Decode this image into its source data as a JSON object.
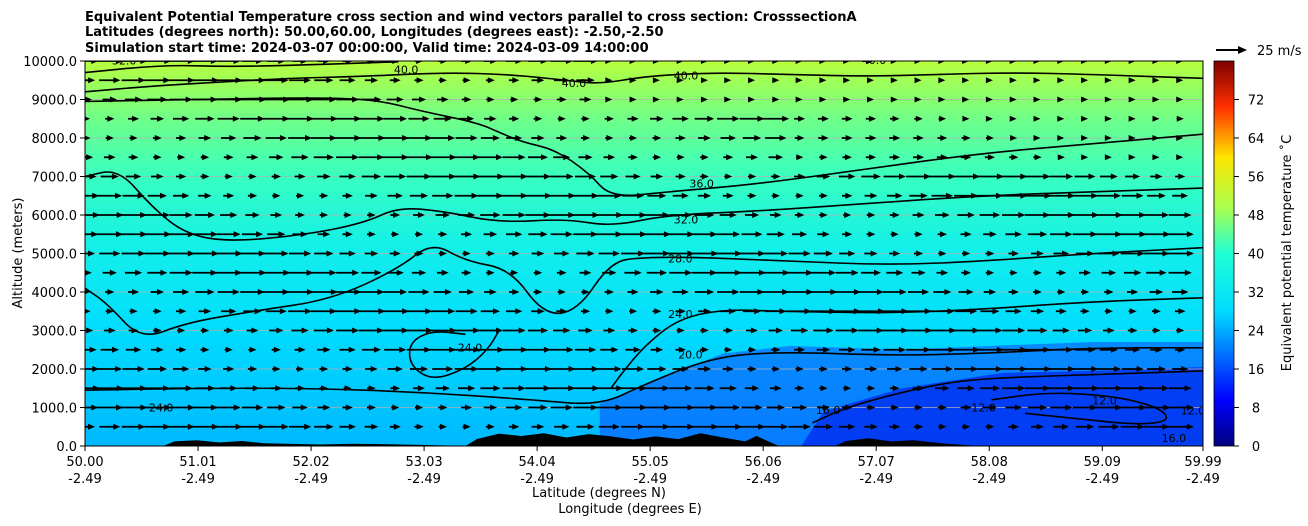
{
  "chart_data": {
    "type": "heatmap",
    "title_lines": [
      "Equivalent Potential Temperature cross section and wind vectors parallel to cross section: CrosssectionA",
      "Latitudes (degrees north): 50.00,60.00, Longitudes (degrees east): -2.50,-2.50",
      "Simulation start time: 2024-03-07 00:00:00, Valid time: 2024-03-09 14:00:00"
    ],
    "ylabel": "Altitude (meters)",
    "xlabel_line1": "Latitude (degrees N)",
    "xlabel_line2": "Longitude (degrees E)",
    "x_ticks": [
      {
        "lat": "50.00",
        "lon": "-2.49",
        "v": 50.0
      },
      {
        "lat": "51.01",
        "lon": "-2.49",
        "v": 51.01
      },
      {
        "lat": "52.02",
        "lon": "-2.49",
        "v": 52.02
      },
      {
        "lat": "53.03",
        "lon": "-2.49",
        "v": 53.03
      },
      {
        "lat": "54.04",
        "lon": "-2.49",
        "v": 54.04
      },
      {
        "lat": "55.05",
        "lon": "-2.49",
        "v": 55.05
      },
      {
        "lat": "56.06",
        "lon": "-2.49",
        "v": 56.06
      },
      {
        "lat": "57.07",
        "lon": "-2.49",
        "v": 57.07
      },
      {
        "lat": "58.08",
        "lon": "-2.49",
        "v": 58.08
      },
      {
        "lat": "59.09",
        "lon": "-2.49",
        "v": 59.09
      },
      {
        "lat": "59.99",
        "lon": "-2.49",
        "v": 59.99
      }
    ],
    "xlim": [
      50.0,
      59.99
    ],
    "y_ticks": [
      "0.0",
      "1000.0",
      "2000.0",
      "3000.0",
      "4000.0",
      "5000.0",
      "6000.0",
      "7000.0",
      "8000.0",
      "9000.0",
      "10000.0"
    ],
    "ylim": [
      0,
      10000
    ],
    "grid": "horizontal",
    "colorbar": {
      "label": "Equivalent potential temperature ˚C",
      "ticks": [
        "0",
        "8",
        "16",
        "24",
        "32",
        "40",
        "48",
        "56",
        "64",
        "72"
      ],
      "range": [
        0,
        80
      ],
      "colormap": "jet"
    },
    "quiver_key": {
      "label": "25 m/s"
    },
    "contours": [
      {
        "level": "40.0",
        "points": [
          [
            50.0,
            9200
          ],
          [
            50.6,
            9350
          ],
          [
            51.2,
            9450
          ],
          [
            51.8,
            9550
          ],
          [
            52.5,
            9600
          ],
          [
            53.2,
            9700
          ],
          [
            53.8,
            9650
          ],
          [
            54.3,
            9500
          ],
          [
            54.6,
            9400
          ],
          [
            55.0,
            9600
          ],
          [
            55.6,
            9700
          ],
          [
            56.3,
            9650
          ],
          [
            57.0,
            9600
          ],
          [
            57.6,
            9650
          ],
          [
            58.3,
            9700
          ],
          [
            59.0,
            9650
          ],
          [
            59.99,
            9550
          ]
        ]
      },
      {
        "level": "40.0",
        "points": [
          [
            50.0,
            9700
          ],
          [
            50.7,
            9900
          ],
          [
            51.3,
            9850
          ],
          [
            52.0,
            9900
          ],
          [
            52.8,
            9980
          ]
        ]
      },
      {
        "level": "36.0",
        "points": [
          [
            50.0,
            8950
          ],
          [
            51.0,
            9000
          ],
          [
            52.0,
            9050
          ],
          [
            52.6,
            9000
          ],
          [
            53.0,
            8700
          ],
          [
            53.5,
            8400
          ],
          [
            53.7,
            8150
          ],
          [
            53.9,
            7900
          ],
          [
            54.2,
            7700
          ],
          [
            54.5,
            7100
          ],
          [
            54.7,
            6450
          ],
          [
            55.2,
            6600
          ],
          [
            56.0,
            6800
          ],
          [
            57.0,
            7200
          ],
          [
            58.0,
            7600
          ],
          [
            59.0,
            7850
          ],
          [
            59.99,
            8100
          ]
        ]
      },
      {
        "level": "32.0",
        "points": [
          [
            50.0,
            7000
          ],
          [
            50.3,
            7200
          ],
          [
            50.6,
            6200
          ],
          [
            50.9,
            5500
          ],
          [
            51.3,
            5300
          ],
          [
            52.0,
            5500
          ],
          [
            52.5,
            5800
          ],
          [
            52.8,
            6200
          ],
          [
            53.2,
            6100
          ],
          [
            53.7,
            5800
          ],
          [
            54.3,
            5900
          ],
          [
            54.7,
            5700
          ],
          [
            55.2,
            6000
          ],
          [
            56.0,
            6100
          ],
          [
            57.0,
            6300
          ],
          [
            58.0,
            6500
          ],
          [
            59.0,
            6600
          ],
          [
            59.99,
            6700
          ]
        ]
      },
      {
        "level": "28.0",
        "points": [
          [
            50.0,
            4100
          ],
          [
            50.2,
            3700
          ],
          [
            50.5,
            2750
          ],
          [
            50.9,
            3200
          ],
          [
            51.5,
            3500
          ],
          [
            52.2,
            3800
          ],
          [
            52.8,
            4600
          ],
          [
            53.1,
            5300
          ],
          [
            53.4,
            4800
          ],
          [
            53.8,
            4600
          ],
          [
            54.1,
            3400
          ],
          [
            54.4,
            3500
          ],
          [
            54.7,
            4800
          ],
          [
            55.0,
            4900
          ],
          [
            55.5,
            4900
          ],
          [
            56.3,
            4800
          ],
          [
            57.2,
            4700
          ],
          [
            58.0,
            4800
          ],
          [
            59.0,
            5000
          ],
          [
            59.99,
            5150
          ]
        ]
      },
      {
        "level": "24.0",
        "points": [
          [
            53.4,
            2900
          ],
          [
            53.1,
            3000
          ],
          [
            52.9,
            2700
          ],
          [
            52.9,
            2100
          ],
          [
            53.1,
            1700
          ],
          [
            53.4,
            2000
          ],
          [
            53.6,
            2500
          ],
          [
            53.7,
            3000
          ]
        ]
      },
      {
        "level": "24.0",
        "points": [
          [
            54.7,
            1500
          ],
          [
            54.8,
            1900
          ],
          [
            55.0,
            2600
          ],
          [
            55.3,
            3300
          ],
          [
            55.7,
            3550
          ],
          [
            56.2,
            3500
          ],
          [
            57.2,
            3450
          ],
          [
            58.0,
            3550
          ],
          [
            59.0,
            3750
          ],
          [
            59.99,
            3850
          ]
        ]
      },
      {
        "level": "20.0",
        "points": [
          [
            50.0,
            1450
          ],
          [
            51.0,
            1500
          ],
          [
            52.0,
            1500
          ],
          [
            53.0,
            1400
          ],
          [
            54.0,
            1200
          ],
          [
            54.6,
            1050
          ],
          [
            55.0,
            1600
          ],
          [
            55.6,
            2300
          ],
          [
            56.2,
            2450
          ],
          [
            57.2,
            2350
          ],
          [
            58.0,
            2400
          ],
          [
            59.0,
            2550
          ],
          [
            59.99,
            2550
          ]
        ]
      },
      {
        "level": "16.0",
        "points": [
          [
            56.5,
            600
          ],
          [
            56.8,
            1000
          ],
          [
            57.3,
            1400
          ],
          [
            57.8,
            1700
          ],
          [
            58.4,
            1800
          ],
          [
            59.0,
            1850
          ],
          [
            59.99,
            1950
          ]
        ]
      },
      {
        "level": "12.0",
        "points": [
          [
            58.1,
            1200
          ],
          [
            58.6,
            1400
          ],
          [
            59.2,
            1300
          ],
          [
            59.6,
            1000
          ],
          [
            59.7,
            650
          ],
          [
            59.4,
            550
          ],
          [
            58.9,
            700
          ],
          [
            58.4,
            850
          ]
        ]
      }
    ],
    "contour_labels": [
      {
        "text": "40.0",
        "x": 52.87,
        "y": 9680
      },
      {
        "text": "40.0",
        "x": 54.37,
        "y": 9320
      },
      {
        "text": "40.0",
        "x": 55.37,
        "y": 9520
      },
      {
        "text": "40.0",
        "x": 57.05,
        "y": 9920
      },
      {
        "text": "36.0",
        "x": 55.51,
        "y": 6720
      },
      {
        "text": "32.0",
        "x": 55.37,
        "y": 5780
      },
      {
        "text": "28.0",
        "x": 55.32,
        "y": 4760
      },
      {
        "text": "24.0",
        "x": 55.32,
        "y": 3320
      },
      {
        "text": "24.0",
        "x": 53.44,
        "y": 2450
      },
      {
        "text": "24.0",
        "x": 50.68,
        "y": 900
      },
      {
        "text": "20.0",
        "x": 55.41,
        "y": 2270
      },
      {
        "text": "16.0",
        "x": 56.64,
        "y": 830
      },
      {
        "text": "12.0",
        "x": 58.03,
        "y": 900
      },
      {
        "text": "12.0",
        "x": 59.11,
        "y": 1080
      },
      {
        "text": "12.0",
        "x": 59.9,
        "y": 820
      },
      {
        "text": "16.0",
        "x": 59.73,
        "y": 100
      },
      {
        "text": "32.0",
        "x": 50.35,
        "y": 9910
      }
    ]
  }
}
